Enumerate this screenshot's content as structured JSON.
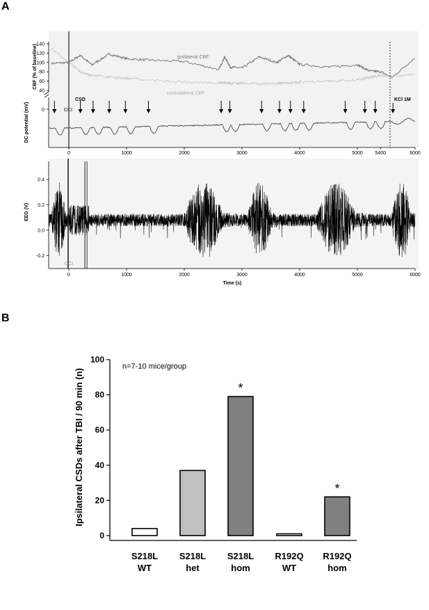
{
  "panel_a": {
    "letter": "A",
    "cbf": {
      "ylabel": "CBF (% of baseline)",
      "yticks": [
        "140",
        "120",
        "100",
        "80",
        "60",
        "40"
      ],
      "ipsilateral_label": "ipsilateral CBF",
      "contralateral_label": "contralateral CBF"
    },
    "dc": {
      "ylabel": "DC potential (mV)",
      "zero_tick": "0",
      "csd_label": "CSD",
      "cci_label": "CCI",
      "kcl_label": "KCl 1M",
      "xticks": [
        "0",
        "1000",
        "2000",
        "3000",
        "4000",
        "5000",
        "5400",
        "6000"
      ]
    },
    "eeg": {
      "ylabel": "EEG (V)",
      "yticks": [
        "0.4",
        "0.2",
        "0.0",
        "-0.2"
      ],
      "cci_label": "CCI",
      "xticks": [
        "0",
        "1000",
        "2000",
        "3000",
        "4000",
        "5000",
        "6000"
      ],
      "xlabel": "Time (s)"
    }
  },
  "panel_b": {
    "letter": "B",
    "note": "n=7-10 mice/group",
    "ylabel": "Ipsilateral CSDs after TBI / 90 min (n)",
    "yticks": [
      "0",
      "20",
      "40",
      "60",
      "80",
      "100"
    ],
    "star": "*",
    "categories": [
      {
        "line1": "S218L",
        "line2": "WT"
      },
      {
        "line1": "S218L",
        "line2": "het"
      },
      {
        "line1": "S218L",
        "line2": "hom"
      },
      {
        "line1": "R192Q",
        "line2": "WT"
      },
      {
        "line1": "R192Q",
        "line2": "hom"
      }
    ],
    "colors": {
      "white": "#ffffff",
      "light": "#c0c0c0",
      "dark": "#808080",
      "outline": "#000000",
      "cbf_ipsi": "#777777",
      "cbf_contra": "#c8c8c8"
    }
  },
  "chart_data": [
    {
      "type": "line",
      "title": "",
      "xlabel": "Time (s)",
      "series": [
        {
          "name": "ipsilateral CBF",
          "x": [
            -300,
            0,
            200,
            400,
            700,
            1000,
            1400,
            2000,
            2600,
            2700,
            2800,
            3000,
            3300,
            3600,
            3800,
            4000,
            4500,
            5000,
            5200,
            5400,
            5600,
            6000
          ],
          "y": [
            98,
            100,
            115,
            95,
            118,
            108,
            105,
            102,
            85,
            112,
            90,
            88,
            112,
            100,
            115,
            96,
            90,
            95,
            82,
            80,
            68,
            110
          ]
        },
        {
          "name": "contralateral CBF",
          "x": [
            -300,
            0,
            200,
            400,
            700,
            1000,
            1400,
            2000,
            2600,
            2700,
            2800,
            3000,
            3300,
            3600,
            3800,
            4000,
            4500,
            5000,
            5200,
            5400,
            5600,
            6000
          ],
          "y": [
            130,
            100,
            80,
            72,
            68,
            66,
            62,
            58,
            56,
            56,
            55,
            56,
            54,
            55,
            56,
            58,
            60,
            62,
            68,
            72,
            70,
            75
          ]
        }
      ],
      "ylabel": "CBF (% of baseline)",
      "ylim": [
        40,
        150
      ],
      "xlim": [
        -350,
        6000
      ]
    },
    {
      "type": "line",
      "title": "",
      "xlabel": "Time (s)",
      "ylabel": "DC potential (mV)",
      "csd_arrows_x": [
        -250,
        200,
        420,
        700,
        980,
        1380,
        2640,
        2790,
        3340,
        3650,
        3840,
        4070,
        4790,
        5130,
        5310
      ],
      "annotations": [
        "CSD",
        "CCI",
        "KCl 1M"
      ],
      "kcl_time": 5400,
      "xlim": [
        -350,
        6000
      ]
    },
    {
      "type": "line",
      "title": "",
      "xlabel": "Time (s)",
      "ylabel": "EEG (V)",
      "ylim": [
        -0.3,
        0.5
      ],
      "xlim": [
        -350,
        6000
      ],
      "high_activity_periods": [
        [
          -300,
          0
        ],
        [
          2000,
          2800
        ],
        [
          3100,
          3600
        ],
        [
          4300,
          5100
        ],
        [
          5600,
          6000
        ]
      ],
      "annotations": [
        "CCI"
      ]
    },
    {
      "type": "bar",
      "title": "",
      "categories": [
        "S218L WT",
        "S218L het",
        "S218L hom",
        "R192Q WT",
        "R192Q hom"
      ],
      "values": [
        4,
        37,
        79,
        1,
        22
      ],
      "significant": [
        false,
        false,
        true,
        false,
        true
      ],
      "xlabel": "",
      "ylabel": "Ipsilateral CSDs after TBI / 90 min (n)",
      "ylim": [
        0,
        100
      ]
    }
  ]
}
